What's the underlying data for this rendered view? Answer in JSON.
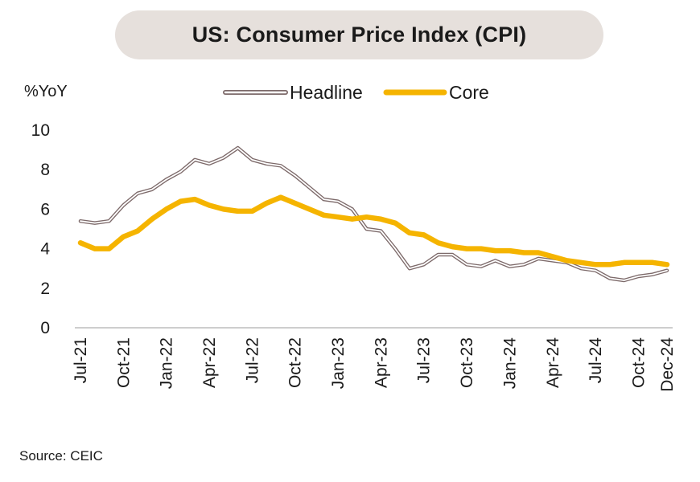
{
  "chart_data": {
    "type": "line",
    "title": "US: Consumer Price Index (CPI)",
    "ylabel": "%YoY",
    "ylim": [
      0,
      10
    ],
    "yticks": [
      0,
      2,
      4,
      6,
      8,
      10
    ],
    "grid": false,
    "legend_position": "top-center",
    "x": [
      "Jul-21",
      "Aug-21",
      "Sep-21",
      "Oct-21",
      "Nov-21",
      "Dec-21",
      "Jan-22",
      "Feb-22",
      "Mar-22",
      "Apr-22",
      "May-22",
      "Jun-22",
      "Jul-22",
      "Aug-22",
      "Sep-22",
      "Oct-22",
      "Nov-22",
      "Dec-22",
      "Jan-23",
      "Feb-23",
      "Mar-23",
      "Apr-23",
      "May-23",
      "Jun-23",
      "Jul-23",
      "Aug-23",
      "Sep-23",
      "Oct-23",
      "Nov-23",
      "Dec-23",
      "Jan-24",
      "Feb-24",
      "Mar-24",
      "Apr-24",
      "May-24",
      "Jun-24",
      "Jul-24",
      "Aug-24",
      "Sep-24",
      "Oct-24",
      "Nov-24",
      "Dec-24"
    ],
    "xtick_labels": [
      "Jul-21",
      "Oct-21",
      "Jan-22",
      "Apr-22",
      "Jul-22",
      "Oct-22",
      "Jan-23",
      "Apr-23",
      "Jul-23",
      "Oct-23",
      "Jan-24",
      "Apr-24",
      "Jul-24",
      "Oct-24",
      "Dec-24"
    ],
    "series": [
      {
        "name": "Headline",
        "color": "#ffffff",
        "outline_color": "#7d6a6a",
        "values": [
          5.4,
          5.3,
          5.4,
          6.2,
          6.8,
          7.0,
          7.5,
          7.9,
          8.5,
          8.3,
          8.6,
          9.1,
          8.5,
          8.3,
          8.2,
          7.7,
          7.1,
          6.5,
          6.4,
          6.0,
          5.0,
          4.9,
          4.0,
          3.0,
          3.2,
          3.7,
          3.7,
          3.2,
          3.1,
          3.4,
          3.1,
          3.2,
          3.5,
          3.4,
          3.3,
          3.0,
          2.9,
          2.5,
          2.4,
          2.6,
          2.7,
          2.9
        ]
      },
      {
        "name": "Core",
        "color": "#f5b400",
        "values": [
          4.3,
          4.0,
          4.0,
          4.6,
          4.9,
          5.5,
          6.0,
          6.4,
          6.5,
          6.2,
          6.0,
          5.9,
          5.9,
          6.3,
          6.6,
          6.3,
          6.0,
          5.7,
          5.6,
          5.5,
          5.6,
          5.5,
          5.3,
          4.8,
          4.7,
          4.3,
          4.1,
          4.0,
          4.0,
          3.9,
          3.9,
          3.8,
          3.8,
          3.6,
          3.4,
          3.3,
          3.2,
          3.2,
          3.3,
          3.3,
          3.3,
          3.2
        ]
      }
    ]
  },
  "footer": {
    "source": "Source: CEIC"
  }
}
